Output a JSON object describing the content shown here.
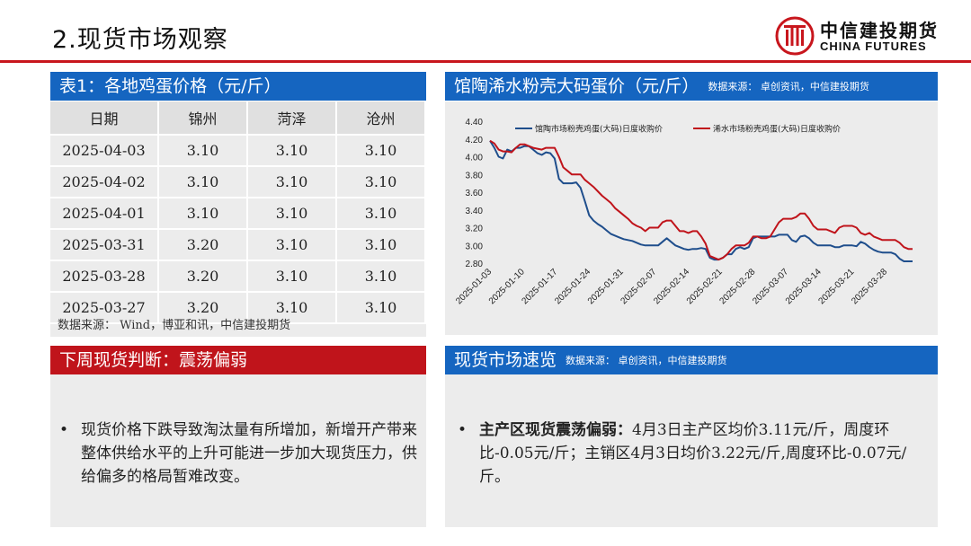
{
  "page": {
    "title": "2.现货市场观察"
  },
  "brand": {
    "cn": "中信建投期货",
    "en": "CHINA FUTURES",
    "color": "#c8161d"
  },
  "table_section": {
    "header": "表1：各地鸡蛋价格（元/斤）",
    "columns": [
      "日期",
      "锦州",
      "菏泽",
      "沧州"
    ],
    "rows": [
      [
        "2025-04-03",
        "3.10",
        "3.10",
        "3.10"
      ],
      [
        "2025-04-02",
        "3.10",
        "3.10",
        "3.10"
      ],
      [
        "2025-04-01",
        "3.10",
        "3.10",
        "3.10"
      ],
      [
        "2025-03-31",
        "3.20",
        "3.10",
        "3.10"
      ],
      [
        "2025-03-28",
        "3.20",
        "3.10",
        "3.10"
      ],
      [
        "2025-03-27",
        "3.20",
        "3.10",
        "3.10"
      ]
    ],
    "source": "数据来源： Wind，博亚和讯，中信建投期货"
  },
  "chart_section": {
    "header": "馆陶浠水粉壳大码蛋价（元/斤）",
    "note": "数据来源： 卓创资讯，中信建投期货"
  },
  "chart_data": {
    "type": "line",
    "ylim": [
      2.8,
      4.4
    ],
    "yticks": [
      "4.40",
      "4.20",
      "4.00",
      "3.80",
      "3.60",
      "3.40",
      "3.20",
      "3.00",
      "2.80"
    ],
    "xticks": [
      "2025-01-03",
      "2025-01-10",
      "2025-01-17",
      "2025-01-24",
      "2025-01-31",
      "2025-02-07",
      "2025-02-14",
      "2025-02-21",
      "2025-02-28",
      "2025-03-07",
      "2025-03-14",
      "2025-03-21",
      "2025-03-28"
    ],
    "series": [
      {
        "name": "馆陶市场粉壳鸡蛋(大码)日度收购价",
        "color": "#1f4e8c",
        "values": [
          4.18,
          4.1,
          4.0,
          3.98,
          4.08,
          4.06,
          4.1,
          4.1,
          4.12,
          4.12,
          4.08,
          4.04,
          4.02,
          4.05,
          4.04,
          3.98,
          3.75,
          3.7,
          3.7,
          3.7,
          3.71,
          3.65,
          3.5,
          3.34,
          3.28,
          3.24,
          3.21,
          3.17,
          3.13,
          3.11,
          3.09,
          3.07,
          3.06,
          3.05,
          3.03,
          3.01,
          3.0,
          3.0,
          3.0,
          3.0,
          3.04,
          3.08,
          3.04,
          3.0,
          2.98,
          2.96,
          2.95,
          2.96,
          2.96,
          2.97,
          2.96,
          2.86,
          2.84,
          2.84,
          2.86,
          2.9,
          2.9,
          2.96,
          2.98,
          2.96,
          2.98,
          3.08,
          3.1,
          3.1,
          3.1,
          3.1,
          3.1,
          3.12,
          3.12,
          3.12,
          3.06,
          3.04,
          3.1,
          3.11,
          3.08,
          3.03,
          3.0,
          3.0,
          3.0,
          3.0,
          2.98,
          2.98,
          3.0,
          3.0,
          3.0,
          2.99,
          3.04,
          3.02,
          2.98,
          2.95,
          2.93,
          2.92,
          2.92,
          2.92,
          2.9,
          2.85,
          2.82,
          2.82,
          2.82
        ]
      },
      {
        "name": "浠水市场粉壳鸡蛋(大码)日度收购价",
        "color": "#c0141b",
        "values": [
          4.18,
          4.15,
          4.08,
          4.06,
          4.06,
          4.05,
          4.1,
          4.14,
          4.14,
          4.12,
          4.1,
          4.09,
          4.08,
          4.1,
          4.1,
          4.1,
          4.0,
          3.88,
          3.84,
          3.8,
          3.8,
          3.8,
          3.74,
          3.7,
          3.66,
          3.61,
          3.56,
          3.52,
          3.48,
          3.42,
          3.38,
          3.34,
          3.3,
          3.25,
          3.22,
          3.2,
          3.16,
          3.2,
          3.2,
          3.2,
          3.26,
          3.28,
          3.28,
          3.22,
          3.16,
          3.16,
          3.14,
          3.16,
          3.16,
          3.1,
          3.02,
          2.88,
          2.86,
          2.84,
          2.86,
          2.9,
          2.96,
          3.0,
          3.0,
          3.0,
          3.03,
          3.1,
          3.1,
          3.08,
          3.08,
          3.1,
          3.18,
          3.26,
          3.3,
          3.3,
          3.3,
          3.32,
          3.36,
          3.36,
          3.3,
          3.22,
          3.18,
          3.18,
          3.18,
          3.16,
          3.14,
          3.2,
          3.22,
          3.22,
          3.22,
          3.2,
          3.14,
          3.12,
          3.14,
          3.1,
          3.08,
          3.06,
          3.06,
          3.06,
          3.06,
          3.03,
          2.98,
          2.96,
          2.96
        ]
      }
    ]
  },
  "judgment_section": {
    "header": "下周现货判断：震荡偏弱",
    "bullet": "•",
    "text": "现货价格下跌导致淘汰量有所增加，新增开产带来整体供给水平的上升可能进一步加大现货压力，供给偏多的格局暂难改变。"
  },
  "overview_section": {
    "header": "现货市场速览",
    "note": "数据来源： 卓创资讯，中信建投期货",
    "bullet": "•",
    "lead": "主产区现货震荡偏弱：",
    "text": "4月3日主产区均价3.11元/斤，周度环比-0.05元/斤；主销区4月3日均价3.22元/斤,周度环比-0.07元/斤。"
  }
}
